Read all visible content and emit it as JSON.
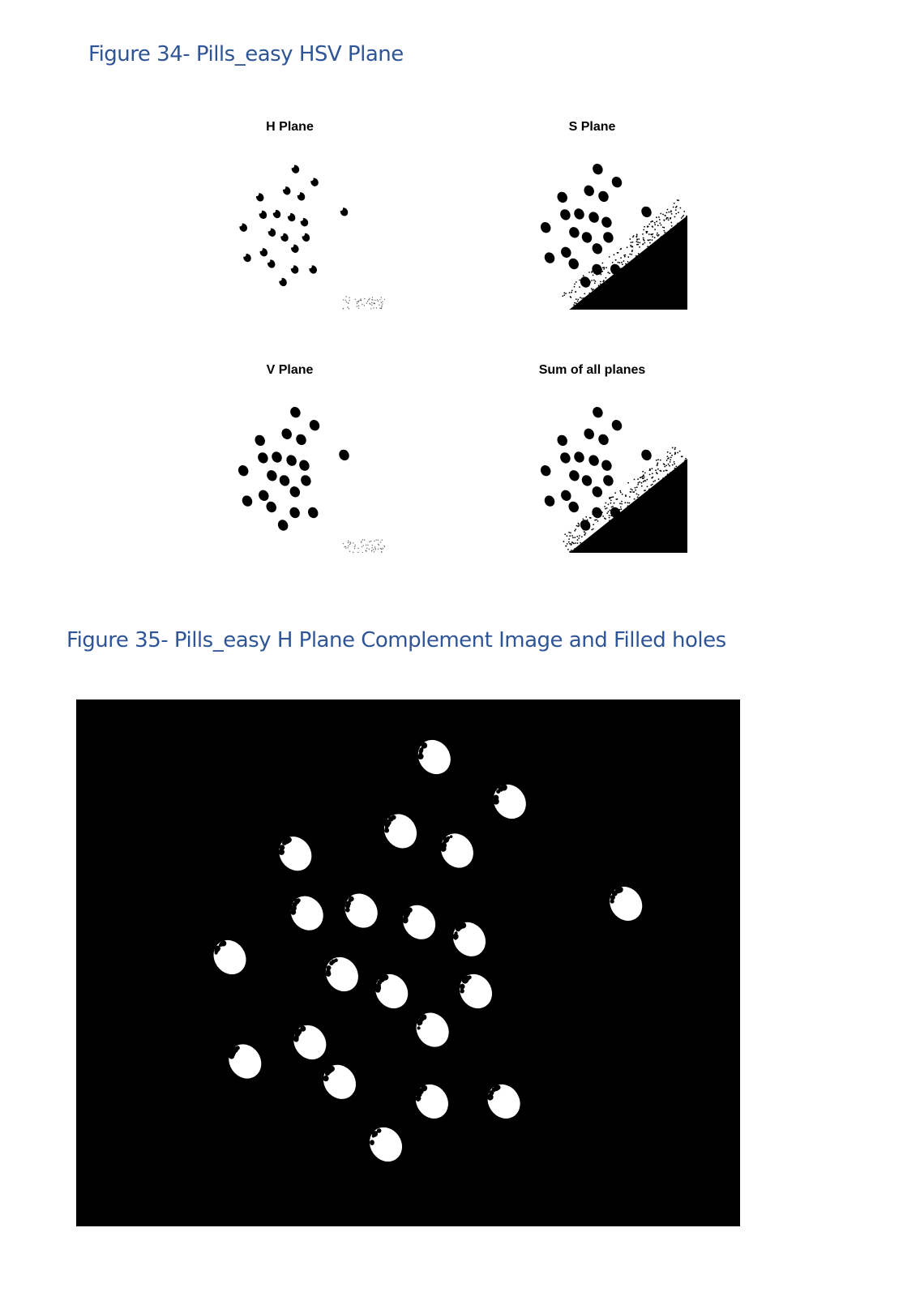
{
  "figure34": {
    "caption": "Figure 34- Pills_easy HSV Plane",
    "panels": [
      {
        "title": "H Plane",
        "pill_shape": "notched",
        "shadow": "faint"
      },
      {
        "title": "S Plane",
        "pill_shape": "solid",
        "shadow": "dark"
      },
      {
        "title": "V Plane",
        "pill_shape": "solid",
        "shadow": "faint"
      },
      {
        "title": "Sum of all planes",
        "pill_shape": "solid",
        "shadow": "dark"
      }
    ]
  },
  "figure35": {
    "caption": "Figure 35- Pills_easy H Plane Complement Image and Filled holes",
    "background": "#000000",
    "foreground": "#ffffff"
  }
}
